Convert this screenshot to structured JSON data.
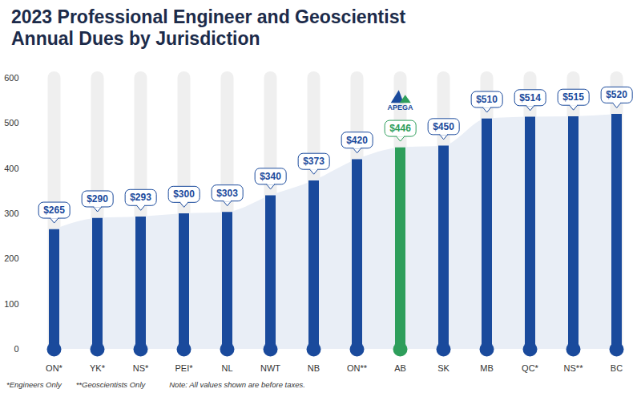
{
  "chart_data": {
    "type": "bar",
    "title": "2023 Professional Engineer and Geoscientist Annual Dues by Jurisdiction",
    "categories": [
      "ON*",
      "YK*",
      "NS*",
      "PEI*",
      "NL",
      "NWT",
      "NB",
      "ON**",
      "AB",
      "SK",
      "MB",
      "QC*",
      "NS**",
      "BC"
    ],
    "values": [
      265,
      290,
      293,
      300,
      303,
      340,
      373,
      420,
      446,
      450,
      510,
      514,
      515,
      520
    ],
    "value_labels": [
      "$265",
      "$290",
      "$293",
      "$300",
      "$303",
      "$340",
      "$373",
      "$420",
      "$446",
      "$450",
      "$510",
      "$514",
      "$515",
      "$520"
    ],
    "colors": [
      "#1a4a9c",
      "#1a4a9c",
      "#1a4a9c",
      "#1a4a9c",
      "#1a4a9c",
      "#1a4a9c",
      "#1a4a9c",
      "#1a4a9c",
      "#2e9e5b",
      "#1a4a9c",
      "#1a4a9c",
      "#1a4a9c",
      "#1a4a9c",
      "#1a4a9c"
    ],
    "ylim": [
      0,
      600
    ],
    "yticks": [
      0,
      100,
      200,
      300,
      400,
      500,
      600
    ],
    "grid": false,
    "data_labels": true,
    "annotations": [
      {
        "category": "AB",
        "text": "APEGA"
      }
    ],
    "notes": [
      "*Engineers Only",
      "**Geoscientists Only",
      "Note: All values shown are before taxes."
    ]
  }
}
